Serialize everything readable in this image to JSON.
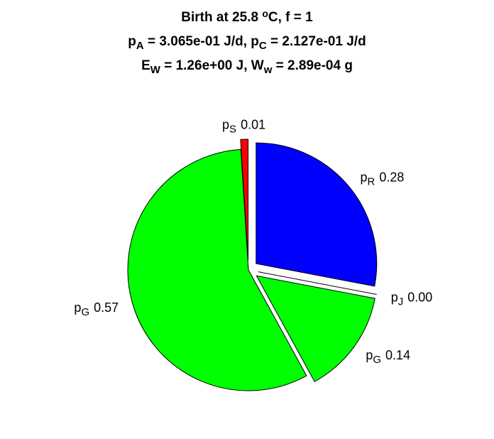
{
  "chart_data": {
    "type": "pie",
    "title": [
      [
        "Birth at 25.8 ",
        {
          "sup": "o"
        },
        "C, f = 1"
      ],
      [
        "p",
        {
          "sub": "A"
        },
        " = 3.065e-01 J/d, p",
        {
          "sub": "C"
        },
        " = 2.127e-01 J/d"
      ],
      [
        "E",
        {
          "sub": "W"
        },
        " = 1.26e+00 J, W",
        {
          "sub": "w"
        },
        " = 2.89e-04 g"
      ]
    ],
    "categories": [
      {
        "base": "p",
        "sub": "R"
      },
      {
        "base": "p",
        "sub": "J"
      },
      {
        "base": "p",
        "sub": "G"
      },
      {
        "base": "p",
        "sub": "G"
      },
      {
        "base": "p",
        "sub": "S"
      }
    ],
    "values": [
      0.28,
      0.0,
      0.14,
      0.57,
      0.01
    ],
    "value_labels": [
      "0.28",
      "0.00",
      "0.14",
      "0.57",
      "0.01"
    ],
    "colors": [
      "#0000ff",
      "#ffffff",
      "#00ff00",
      "#00ff00",
      "#ff0000"
    ],
    "explode": [
      1,
      1,
      1,
      0,
      1
    ]
  }
}
